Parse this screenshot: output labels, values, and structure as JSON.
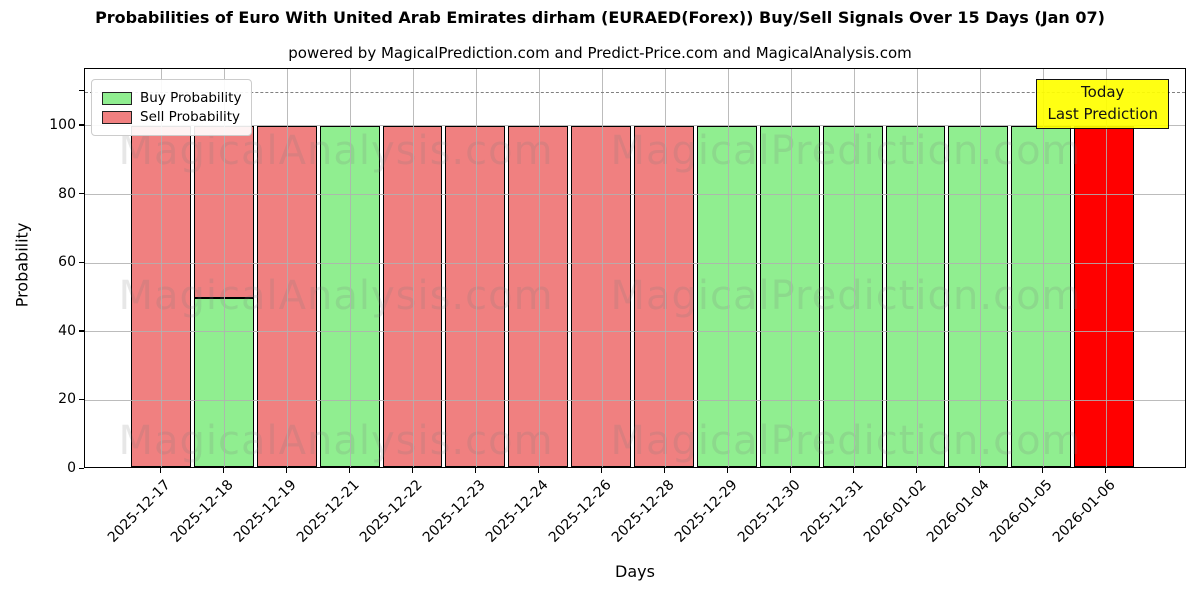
{
  "chart_data": {
    "type": "bar",
    "stacked": true,
    "title": "Probabilities of Euro With United Arab Emirates dirham (EURAED(Forex)) Buy/Sell Signals Over 15 Days (Jan 07)",
    "subtitle": "powered by MagicalPrediction.com and Predict-Price.com and MagicalAnalysis.com",
    "xlabel": "Days",
    "ylabel": "Probability",
    "ylim": [
      0,
      116.6
    ],
    "yticks": [
      0,
      20,
      40,
      60,
      80,
      100
    ],
    "grid": true,
    "legend_position": "upper left",
    "categories": [
      "2025-12-17",
      "2025-12-18",
      "2025-12-19",
      "2025-12-21",
      "2025-12-22",
      "2025-12-23",
      "2025-12-24",
      "2025-12-26",
      "2025-12-28",
      "2025-12-29",
      "2025-12-30",
      "2025-12-31",
      "2026-01-02",
      "2026-01-04",
      "2026-01-05",
      "2026-01-06"
    ],
    "series": [
      {
        "name": "Buy Probability",
        "color": "#90ee90",
        "values": [
          0,
          49.5,
          0,
          100,
          0,
          0,
          0,
          0,
          0,
          100,
          100,
          100,
          100,
          100,
          100,
          0
        ]
      },
      {
        "name": "Sell Probability",
        "color": "#f08080",
        "values": [
          100,
          50.5,
          100,
          0,
          100,
          100,
          100,
          100,
          100,
          0,
          0,
          0,
          0,
          0,
          0,
          100
        ]
      }
    ],
    "bar_edge_color": "#000000",
    "bar_color_overrides": [
      {
        "index": 15,
        "series": "Sell Probability",
        "color": "#ff0000"
      }
    ],
    "dashed_line": {
      "y": 110,
      "color": "#808080"
    },
    "annotation_box": {
      "lines": [
        "Today",
        "Last Prediction"
      ],
      "bg_color": "#ffff00"
    }
  },
  "watermarks": {
    "left": "MagicalAnalysis.com",
    "right": "MagicalPrediction.com"
  }
}
